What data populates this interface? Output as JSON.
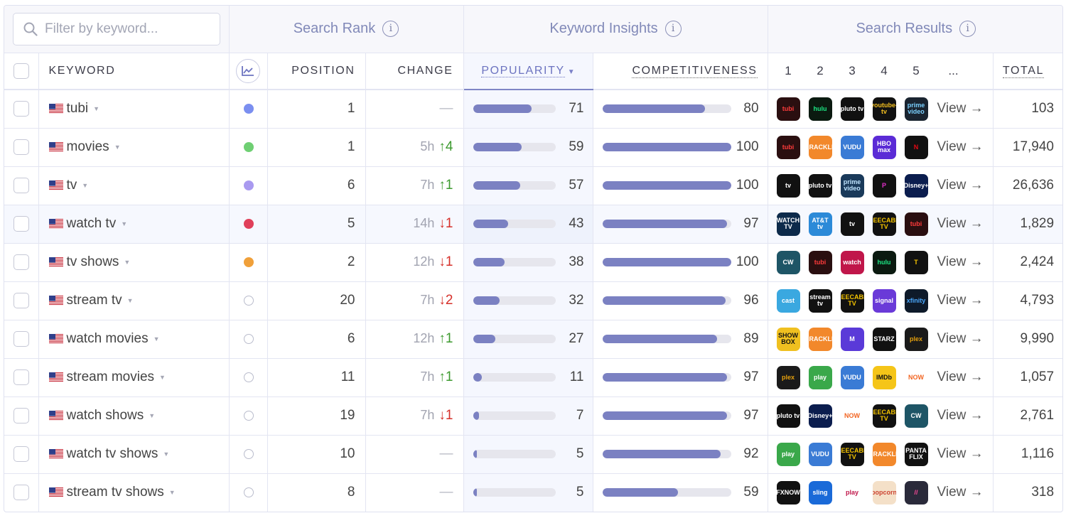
{
  "search": {
    "placeholder": "Filter by keyword..."
  },
  "groups": {
    "search_rank": "Search Rank",
    "keyword_insights": "Keyword Insights",
    "search_results": "Search Results"
  },
  "columns": {
    "keyword": "KEYWORD",
    "position": "POSITION",
    "change": "CHANGE",
    "popularity": "POPULARITY",
    "competitiveness": "COMPETITIVENESS",
    "results": [
      "1",
      "2",
      "3",
      "4",
      "5",
      "..."
    ],
    "total": "TOTAL"
  },
  "view_label": "View →",
  "colors": {
    "accent": "#7b81c2",
    "up": "#3d9a2f",
    "down": "#d6302a"
  },
  "rows": [
    {
      "keyword": "tubi",
      "dot": "#7b8ff0",
      "position": "1",
      "change_time": "",
      "change_dir": "none",
      "change_val": "—",
      "popularity": 71,
      "competitiveness": 80,
      "total": "103",
      "apps": [
        [
          "tubi",
          "#2a0f10",
          "#ff3b3b",
          "rect"
        ],
        [
          "hulu",
          "#0b1a10",
          "#1ce783",
          "rect"
        ],
        [
          "pluto tv",
          "#111",
          "#fff",
          "rect"
        ],
        [
          "youtube-tv",
          "#111",
          "#f4c020",
          "rect"
        ],
        [
          "prime video",
          "#1a2430",
          "#7ad0ff",
          "rect"
        ]
      ]
    },
    {
      "keyword": "movies",
      "dot": "#6fcf73",
      "position": "1",
      "change_time": "5h",
      "change_dir": "up",
      "change_val": "↑4",
      "popularity": 59,
      "competitiveness": 100,
      "total": "17,940",
      "apps": [
        [
          "tubi",
          "#2a0f10",
          "#ff3b3b",
          "rect"
        ],
        [
          "CRACKLE",
          "#f2882b",
          "#fff",
          "rect"
        ],
        [
          "VUDU",
          "#3a7bd5",
          "#fff",
          "rect"
        ],
        [
          "HBO max",
          "#5b2bd6",
          "#fff",
          "rect"
        ],
        [
          "N",
          "#111",
          "#e50914",
          "rect"
        ]
      ]
    },
    {
      "keyword": "tv",
      "dot": "#a99af0",
      "position": "6",
      "change_time": "7h",
      "change_dir": "up",
      "change_val": "↑1",
      "popularity": 57,
      "competitiveness": 100,
      "total": "26,636",
      "apps": [
        [
          "tv",
          "#111",
          "#fff",
          "rect"
        ],
        [
          "pluto tv",
          "#111",
          "#fff",
          "rect"
        ],
        [
          "prime video",
          "#1a3a5a",
          "#bfe4ff",
          "rect"
        ],
        [
          "P",
          "#111",
          "#e030c8",
          "rect"
        ],
        [
          "Disney+",
          "#0b1d4e",
          "#fff",
          "rect"
        ]
      ]
    },
    {
      "keyword": "watch tv",
      "dot": "#e0405a",
      "position": "5",
      "change_time": "14h",
      "change_dir": "down",
      "change_val": "↓1",
      "popularity": 43,
      "competitiveness": 97,
      "total": "1,829",
      "apps": [
        [
          "WATCH TV",
          "#0d2a4a",
          "#fff",
          "rect"
        ],
        [
          "AT&T tv",
          "#2c8ad8",
          "#fff",
          "rect"
        ],
        [
          "tv",
          "#111",
          "#fff",
          "rect"
        ],
        [
          "FREECABLE TV",
          "#111",
          "#f5c400",
          "rect"
        ],
        [
          "tubi",
          "#2a0f10",
          "#ff3b3b",
          "rect"
        ]
      ]
    },
    {
      "keyword": "tv shows",
      "dot": "#f0a03a",
      "position": "2",
      "change_time": "12h",
      "change_dir": "down",
      "change_val": "↓1",
      "popularity": 38,
      "competitiveness": 100,
      "total": "2,424",
      "apps": [
        [
          "CW",
          "#1e5566",
          "#fff",
          "rect"
        ],
        [
          "tubi",
          "#2a0f10",
          "#ff3b3b",
          "rect"
        ],
        [
          "watch",
          "#c0164a",
          "#fff",
          "rect"
        ],
        [
          "hulu",
          "#0b1a10",
          "#1ce783",
          "rect"
        ],
        [
          "T",
          "#111",
          "#f5c400",
          "rect"
        ]
      ]
    },
    {
      "keyword": "stream tv",
      "dot": "",
      "position": "20",
      "change_time": "7h",
      "change_dir": "down",
      "change_val": "↓2",
      "popularity": 32,
      "competitiveness": 96,
      "total": "4,793",
      "apps": [
        [
          "cast",
          "#3aa8e0",
          "#fff",
          "rect"
        ],
        [
          "stream tv",
          "#111",
          "#fff",
          "rect"
        ],
        [
          "FREECABLE TV",
          "#111",
          "#f5c400",
          "rect"
        ],
        [
          "signal",
          "#6a3ad8",
          "#fff",
          "rect"
        ],
        [
          "xfinity",
          "#0e1a2a",
          "#4aa8ff",
          "rect"
        ]
      ]
    },
    {
      "keyword": "watch movies",
      "dot": "",
      "position": "6",
      "change_time": "12h",
      "change_dir": "up",
      "change_val": "↑1",
      "popularity": 27,
      "competitiveness": 89,
      "total": "9,990",
      "apps": [
        [
          "SHOW BOX",
          "#f0c020",
          "#111",
          "rect"
        ],
        [
          "CRACKLE",
          "#f2882b",
          "#fff",
          "rect"
        ],
        [
          "M",
          "#5a3ad8",
          "#fff",
          "rect"
        ],
        [
          "STARZ",
          "#111",
          "#fff",
          "rect"
        ],
        [
          "plex",
          "#1a1a1a",
          "#e5a00d",
          "rect"
        ]
      ]
    },
    {
      "keyword": "stream movies",
      "dot": "",
      "position": "11",
      "change_time": "7h",
      "change_dir": "up",
      "change_val": "↑1",
      "popularity": 11,
      "competitiveness": 97,
      "total": "1,057",
      "apps": [
        [
          "plex",
          "#1a1a1a",
          "#e5a00d",
          "rect"
        ],
        [
          "play",
          "#3aa84a",
          "#fff",
          "rect"
        ],
        [
          "VUDU",
          "#3a7bd5",
          "#fff",
          "rect"
        ],
        [
          "IMDb",
          "#f5c518",
          "#111",
          "rect"
        ],
        [
          "NOW",
          "#ffffff",
          "#f26522",
          "rect"
        ]
      ]
    },
    {
      "keyword": "watch shows",
      "dot": "",
      "position": "19",
      "change_time": "7h",
      "change_dir": "down",
      "change_val": "↓1",
      "popularity": 7,
      "competitiveness": 97,
      "total": "2,761",
      "apps": [
        [
          "pluto tv",
          "#111",
          "#fff",
          "rect"
        ],
        [
          "Disney+",
          "#0b1d4e",
          "#fff",
          "rect"
        ],
        [
          "NOW",
          "#ffffff",
          "#f26522",
          "rect"
        ],
        [
          "FREECABLE TV",
          "#111",
          "#f5c400",
          "rect"
        ],
        [
          "CW",
          "#1e5566",
          "#fff",
          "rect"
        ]
      ]
    },
    {
      "keyword": "watch tv shows",
      "dot": "",
      "position": "10",
      "change_time": "",
      "change_dir": "none",
      "change_val": "—",
      "popularity": 5,
      "competitiveness": 92,
      "total": "1,116",
      "apps": [
        [
          "play",
          "#3aa84a",
          "#fff",
          "rect"
        ],
        [
          "VUDU",
          "#3a7bd5",
          "#fff",
          "rect"
        ],
        [
          "FREECABLE TV",
          "#111",
          "#f5c400",
          "rect"
        ],
        [
          "CRACKLE",
          "#f2882b",
          "#fff",
          "rect"
        ],
        [
          "PANTA FLIX",
          "#111",
          "#fff",
          "rect"
        ]
      ]
    },
    {
      "keyword": "stream tv shows",
      "dot": "",
      "position": "8",
      "change_time": "",
      "change_dir": "none",
      "change_val": "—",
      "popularity": 5,
      "competitiveness": 59,
      "total": "318",
      "apps": [
        [
          "FXNOW",
          "#111",
          "#fff",
          "rect"
        ],
        [
          "sling",
          "#1a6ad8",
          "#fff",
          "rect"
        ],
        [
          "play",
          "#ffffff",
          "#c0164a",
          "rect"
        ],
        [
          "popcorn",
          "#f4e0c8",
          "#c43",
          "rect"
        ],
        [
          "//",
          "#2a2a3a",
          "#ff4a9a",
          "rect"
        ]
      ]
    }
  ]
}
